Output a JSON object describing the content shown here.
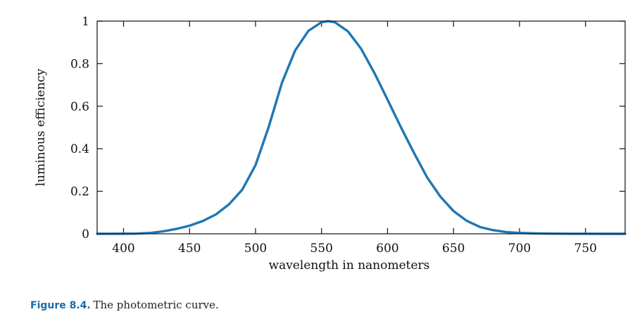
{
  "chart_data": {
    "type": "line",
    "xlabel": "wavelength in nanometers",
    "ylabel": "luminous efficiency",
    "xlim": [
      380,
      780
    ],
    "ylim": [
      0,
      1
    ],
    "xticks": [
      400,
      450,
      500,
      550,
      600,
      650,
      700,
      750
    ],
    "yticks": [
      0,
      0.2,
      0.4,
      0.6,
      0.8,
      1
    ],
    "ytick_labels": [
      "0",
      "0.2",
      "0.4",
      "0.6",
      "0.8",
      "1"
    ],
    "grid": false,
    "line_color": "#1f77b4",
    "series": [
      {
        "x": [
          380,
          390,
          400,
          410,
          420,
          430,
          440,
          450,
          460,
          470,
          480,
          490,
          500,
          510,
          520,
          530,
          540,
          550,
          555,
          560,
          570,
          580,
          590,
          600,
          610,
          620,
          630,
          640,
          650,
          660,
          670,
          680,
          690,
          700,
          710,
          720,
          730,
          740,
          750,
          760,
          770,
          780
        ],
        "y": [
          0.0,
          0.0001,
          0.0004,
          0.0012,
          0.004,
          0.0116,
          0.023,
          0.038,
          0.06,
          0.091,
          0.139,
          0.208,
          0.323,
          0.503,
          0.71,
          0.862,
          0.954,
          0.995,
          1.0,
          0.995,
          0.952,
          0.87,
          0.757,
          0.631,
          0.503,
          0.381,
          0.265,
          0.175,
          0.107,
          0.061,
          0.032,
          0.017,
          0.0082,
          0.0041,
          0.0021,
          0.001,
          0.0005,
          0.0002,
          0.0001,
          0.0,
          0.0,
          0.0
        ]
      }
    ]
  },
  "caption": {
    "figure_number": "Figure 8.4.",
    "text": "The photometric curve."
  }
}
